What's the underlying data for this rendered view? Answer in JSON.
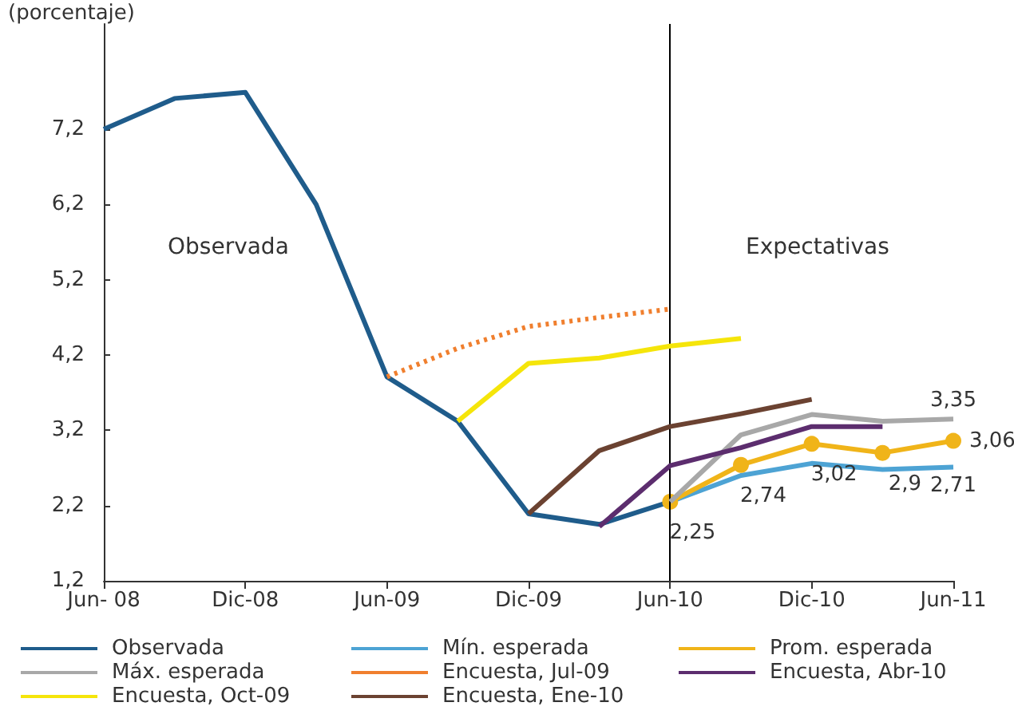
{
  "chart_data": {
    "type": "line",
    "ylabel": "(porcentaje)",
    "categories": [
      "Jun- 08",
      null,
      "Dic-08",
      null,
      "Jun-09",
      null,
      "Dic-09",
      null,
      "Jun-10",
      null,
      "Dic-10",
      null,
      "Jun-11"
    ],
    "ylim": [
      1.2,
      8.6
    ],
    "yticks": [
      {
        "value": 1.2,
        "label": "1,2"
      },
      {
        "value": 2.2,
        "label": "2,2"
      },
      {
        "value": 3.2,
        "label": "3,2"
      },
      {
        "value": 4.2,
        "label": "4,2"
      },
      {
        "value": 5.2,
        "label": "5,2"
      },
      {
        "value": 6.2,
        "label": "6,2"
      },
      {
        "value": 7.2,
        "label": "7,2"
      }
    ],
    "grid": false,
    "legend": "bottom",
    "marker": "none",
    "line_style": "solid",
    "series": [
      {
        "name": "Observada",
        "color": "#1f5c8b",
        "values": [
          7.2,
          7.61,
          7.69,
          6.2,
          3.91,
          3.32,
          2.09,
          1.95,
          2.25,
          null,
          null,
          null,
          null
        ]
      },
      {
        "name": "Mín. esperada",
        "color": "#4da3d4",
        "values": [
          null,
          null,
          null,
          null,
          null,
          null,
          null,
          null,
          2.25,
          2.6,
          2.76,
          2.68,
          2.71
        ],
        "value_labels": [
          null,
          null,
          null,
          null,
          null,
          null,
          null,
          null,
          null,
          null,
          null,
          null,
          "2,71"
        ]
      },
      {
        "name": "Prom. esperada",
        "color": "#f0b419",
        "marker": "circle",
        "values": [
          null,
          null,
          null,
          null,
          null,
          null,
          null,
          null,
          2.25,
          2.74,
          3.02,
          2.9,
          3.06
        ],
        "value_labels": [
          null,
          null,
          null,
          null,
          null,
          null,
          null,
          null,
          "2,25",
          "2,74",
          "3,02",
          "2,9",
          "3,06"
        ]
      },
      {
        "name": "Máx. esperada",
        "color": "#a8a8a8",
        "values": [
          null,
          null,
          null,
          null,
          null,
          null,
          null,
          null,
          2.25,
          3.14,
          3.41,
          3.32,
          3.35
        ],
        "value_labels": [
          null,
          null,
          null,
          null,
          null,
          null,
          null,
          null,
          null,
          null,
          null,
          null,
          "3,35"
        ]
      },
      {
        "name": "Encuesta, Jul-09",
        "color": "#f07f2e",
        "line_style": "dotted",
        "values": [
          null,
          null,
          null,
          null,
          3.91,
          4.29,
          4.58,
          4.7,
          4.81,
          null,
          null,
          null,
          null
        ]
      },
      {
        "name": "Encuesta, Abr-10",
        "color": "#5c2d6e",
        "values": [
          null,
          null,
          null,
          null,
          null,
          null,
          null,
          1.92,
          2.73,
          2.97,
          3.25,
          3.25,
          null
        ]
      },
      {
        "name": "Encuesta, Oct-09",
        "color": "#f5e50a",
        "values": [
          null,
          null,
          null,
          null,
          null,
          3.32,
          4.09,
          4.16,
          4.32,
          4.42,
          null,
          null,
          null
        ]
      },
      {
        "name": "Encuesta, Ene-10",
        "color": "#6b4231",
        "values": [
          null,
          null,
          null,
          null,
          null,
          null,
          2.09,
          2.93,
          3.25,
          3.42,
          3.61,
          null,
          null
        ]
      }
    ],
    "ref_lines": [
      {
        "axis": "x",
        "value": "Jun-10",
        "color": "#000000"
      }
    ],
    "annotations": [
      "Observada",
      "Expectativas"
    ]
  }
}
